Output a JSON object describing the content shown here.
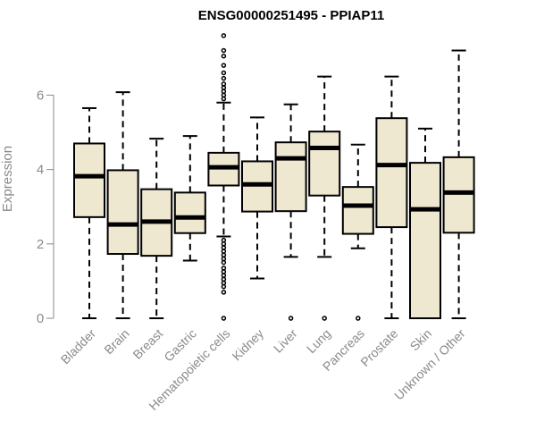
{
  "chart_data": {
    "type": "boxplot",
    "title": "ENSG00000251495 - PPIAP11",
    "xlabel": "",
    "ylabel": "Expression",
    "ylim": [
      0,
      7.6
    ],
    "yticks": [
      0,
      2,
      4,
      6
    ],
    "grid": false,
    "colors": {
      "box_fill": "#efe8d0",
      "stroke": "#000000",
      "axis_text": "#8a8a8a"
    },
    "categories": [
      "Bladder",
      "Brain",
      "Breast",
      "Gastric",
      "Hematopoietic cells",
      "Kidney",
      "Liver",
      "Lung",
      "Pancreas",
      "Prostate",
      "Skin",
      "Unknown / Other"
    ],
    "boxes": [
      {
        "name": "Bladder",
        "min": 0,
        "q1": 2.72,
        "median": 3.82,
        "q3": 4.7,
        "max": 5.65,
        "outliers": []
      },
      {
        "name": "Brain",
        "min": 0,
        "q1": 1.73,
        "median": 2.52,
        "q3": 3.98,
        "max": 6.08,
        "outliers": []
      },
      {
        "name": "Breast",
        "min": 0,
        "q1": 1.68,
        "median": 2.6,
        "q3": 3.47,
        "max": 4.83,
        "outliers": []
      },
      {
        "name": "Gastric",
        "min": 1.55,
        "q1": 2.29,
        "median": 2.71,
        "q3": 3.38,
        "max": 4.9,
        "outliers": []
      },
      {
        "name": "Hematopoietic cells",
        "min": 2.2,
        "q1": 3.57,
        "median": 4.06,
        "q3": 4.45,
        "max": 5.8,
        "outliers": [
          0,
          0.7,
          0.85,
          0.95,
          1.05,
          1.15,
          1.25,
          1.35,
          1.5,
          1.6,
          1.7,
          1.8,
          1.9,
          2.0,
          2.1,
          5.9,
          6.0,
          6.1,
          6.2,
          6.3,
          6.45,
          6.6,
          6.8,
          7.05,
          7.2,
          7.6
        ]
      },
      {
        "name": "Kidney",
        "min": 1.07,
        "q1": 2.87,
        "median": 3.6,
        "q3": 4.22,
        "max": 5.4,
        "outliers": []
      },
      {
        "name": "Liver",
        "min": 1.65,
        "q1": 2.88,
        "median": 4.3,
        "q3": 4.73,
        "max": 5.75,
        "outliers": [
          0
        ]
      },
      {
        "name": "Lung",
        "min": 1.65,
        "q1": 3.3,
        "median": 4.58,
        "q3": 5.02,
        "max": 6.5,
        "outliers": [
          0
        ]
      },
      {
        "name": "Pancreas",
        "min": 1.88,
        "q1": 2.27,
        "median": 3.03,
        "q3": 3.53,
        "max": 4.67,
        "outliers": [
          0
        ]
      },
      {
        "name": "Prostate",
        "min": 0,
        "q1": 2.45,
        "median": 4.12,
        "q3": 5.38,
        "max": 6.5,
        "outliers": []
      },
      {
        "name": "Skin",
        "min": 0,
        "q1": 0,
        "median": 2.93,
        "q3": 4.18,
        "max": 5.1,
        "outliers": []
      },
      {
        "name": "Unknown / Other",
        "min": 0,
        "q1": 2.3,
        "median": 3.38,
        "q3": 4.33,
        "max": 7.2,
        "outliers": []
      }
    ]
  }
}
